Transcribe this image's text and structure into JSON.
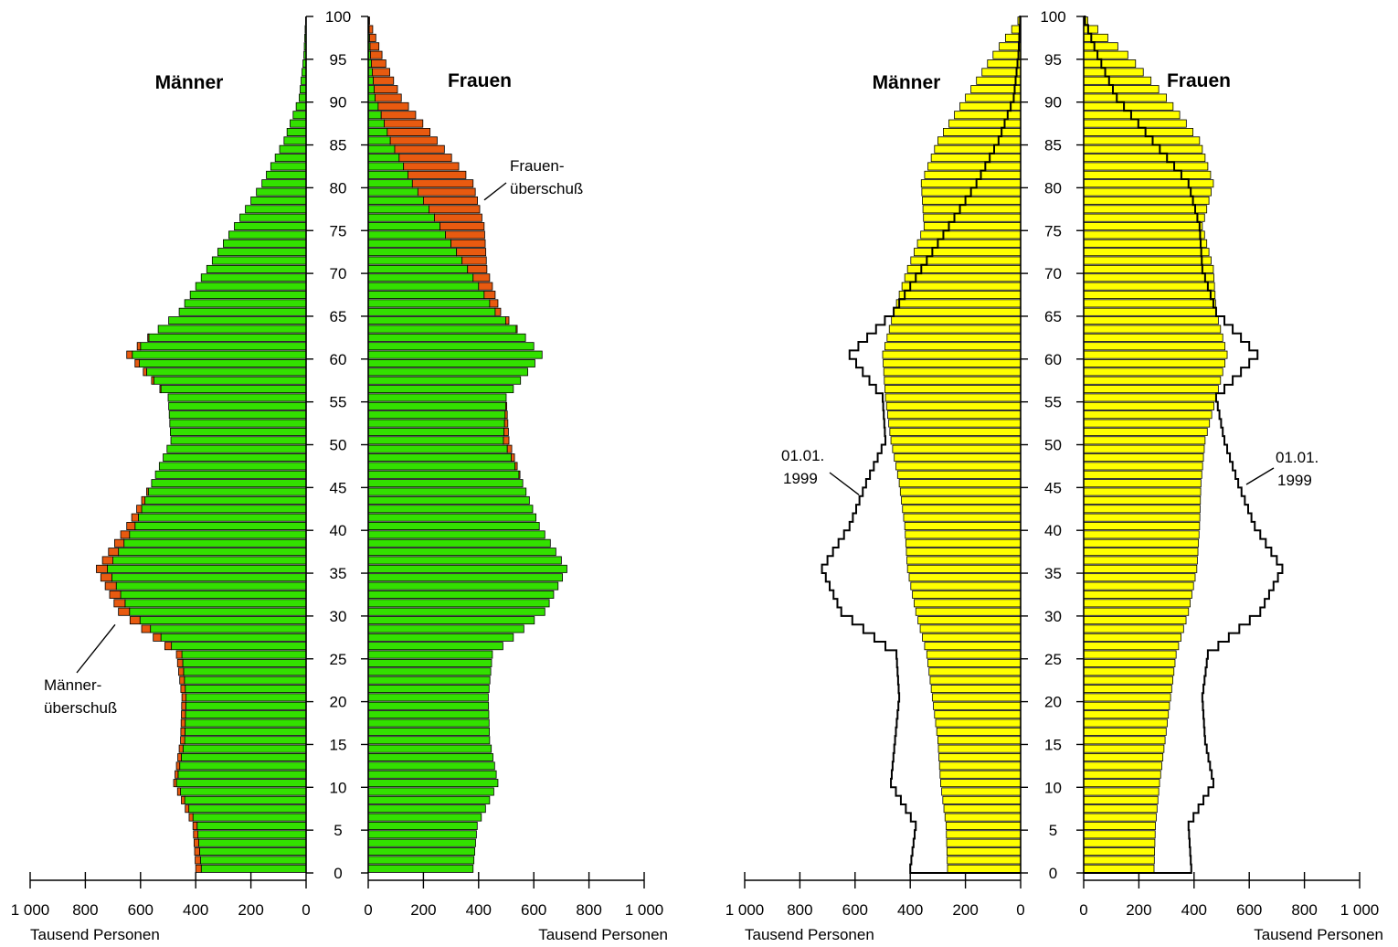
{
  "chart_data": [
    {
      "type": "bar",
      "orientation": "horizontal",
      "layout": "population-pyramid",
      "left_title": "Männer",
      "right_title": "Frauen",
      "y_axis": {
        "min": 0,
        "max": 100,
        "tick_labels": [
          "0",
          "5",
          "10",
          "15",
          "20",
          "25",
          "30",
          "35",
          "40",
          "45",
          "50",
          "55",
          "60",
          "65",
          "70",
          "75",
          "80",
          "85",
          "90",
          "95",
          "100"
        ]
      },
      "x_axis": {
        "min": 0,
        "max": 1000,
        "tick_labels": [
          "1 000",
          "800",
          "600",
          "400",
          "200",
          "0"
        ],
        "right_tick_labels": [
          "0",
          "200",
          "400",
          "600",
          "800",
          "1 000"
        ],
        "left_unit": "Tausend Personen",
        "right_unit": "Tausend Personen"
      },
      "annotations": [
        {
          "text": [
            "Frauen-",
            "überschuß"
          ],
          "side": "right",
          "points_to_age": 79
        },
        {
          "text": [
            "Männer-",
            "überschuß"
          ],
          "side": "left",
          "points_to_age": 29
        }
      ],
      "series": [
        {
          "key": "common",
          "color": "#33e000"
        },
        {
          "key": "surplus",
          "color": "#e85a10"
        }
      ],
      "ages": [
        0,
        5,
        10,
        15,
        20,
        25,
        30,
        35,
        40,
        45,
        50,
        55,
        60,
        65,
        70,
        75,
        80,
        85,
        90,
        95,
        99
      ],
      "men": [
        400,
        410,
        480,
        455,
        450,
        470,
        680,
        760,
        650,
        560,
        490,
        500,
        650,
        460,
        360,
        260,
        160,
        80,
        25,
        8,
        2
      ],
      "women": [
        380,
        395,
        470,
        440,
        435,
        450,
        640,
        720,
        620,
        560,
        510,
        500,
        630,
        480,
        430,
        420,
        380,
        250,
        120,
        50,
        5
      ]
    },
    {
      "type": "bar",
      "orientation": "horizontal",
      "layout": "population-pyramid",
      "left_title": "Männer",
      "right_title": "Frauen",
      "y_axis": {
        "min": 0,
        "max": 100,
        "tick_labels": [
          "0",
          "5",
          "10",
          "15",
          "20",
          "25",
          "30",
          "35",
          "40",
          "45",
          "50",
          "55",
          "60",
          "65",
          "70",
          "75",
          "80",
          "85",
          "90",
          "95",
          "100"
        ]
      },
      "x_axis": {
        "min": 0,
        "max": 1000,
        "tick_labels": [
          "1 000",
          "800",
          "600",
          "400",
          "200",
          "0"
        ],
        "right_tick_labels": [
          "0",
          "200",
          "400",
          "600",
          "800",
          "1 000"
        ],
        "left_unit": "Tausend Personen",
        "right_unit": "Tausend Personen"
      },
      "annotations": [
        {
          "text": [
            "01.01.",
            "1999"
          ],
          "side": "left",
          "points_to_age": 45
        },
        {
          "text": [
            "01.01.",
            "1999"
          ],
          "side": "right",
          "points_to_age": 46
        }
      ],
      "series": [
        {
          "key": "projection",
          "color": "#ffff00"
        },
        {
          "key": "outline_1999",
          "color": "#000000"
        }
      ],
      "ages": [
        0,
        5,
        10,
        15,
        20,
        25,
        30,
        35,
        40,
        45,
        50,
        55,
        60,
        65,
        70,
        75,
        80,
        85,
        90,
        95,
        99
      ],
      "men": [
        265,
        270,
        290,
        300,
        320,
        340,
        380,
        410,
        420,
        440,
        470,
        490,
        500,
        460,
        410,
        350,
        360,
        300,
        200,
        100,
        10
      ],
      "women": [
        255,
        260,
        275,
        295,
        315,
        335,
        380,
        410,
        420,
        425,
        440,
        480,
        520,
        480,
        470,
        430,
        470,
        420,
        300,
        160,
        15
      ],
      "men_1999": [
        400,
        380,
        470,
        455,
        440,
        450,
        650,
        720,
        620,
        560,
        490,
        500,
        620,
        460,
        360,
        260,
        160,
        80,
        25,
        8,
        2
      ],
      "women_1999": [
        390,
        380,
        470,
        440,
        430,
        450,
        640,
        720,
        620,
        560,
        510,
        480,
        630,
        480,
        430,
        420,
        380,
        250,
        120,
        50,
        5
      ]
    }
  ]
}
